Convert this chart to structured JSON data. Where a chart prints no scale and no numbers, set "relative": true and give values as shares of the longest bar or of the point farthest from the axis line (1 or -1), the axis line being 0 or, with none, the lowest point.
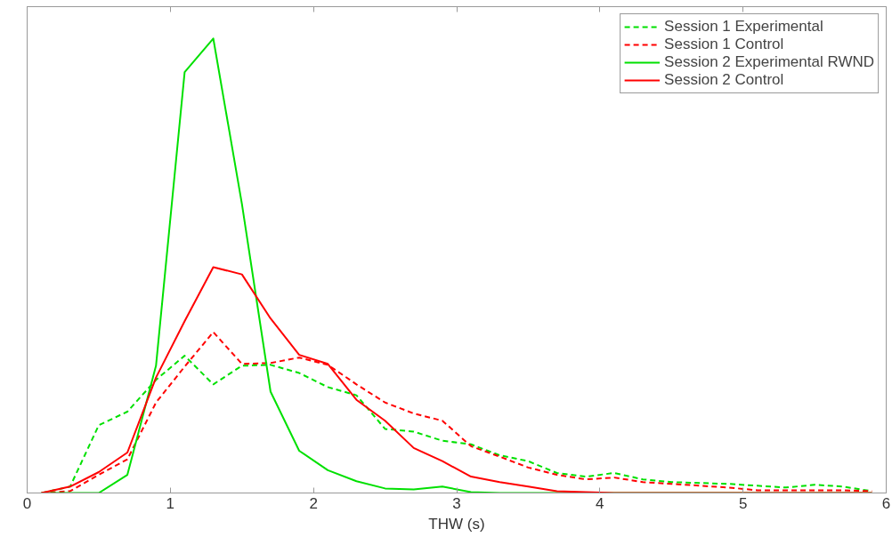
{
  "chart_data": {
    "type": "line",
    "relative": true,
    "xlabel": "THW (s)",
    "xlim": [
      0,
      6
    ],
    "xticks": [
      0,
      1,
      2,
      3,
      4,
      5,
      6
    ],
    "annotations": [
      "0"
    ],
    "grid": false,
    "legend": "top right",
    "tick_labels": "x",
    "x": [
      0.1,
      0.3,
      0.5,
      0.7,
      0.9,
      1.1,
      1.3,
      1.5,
      1.7,
      1.9,
      2.1,
      2.3,
      2.5,
      2.7,
      2.9,
      3.1,
      3.3,
      3.5,
      3.7,
      3.9,
      4.1,
      4.3,
      4.5,
      4.7,
      4.9,
      5.1,
      5.3,
      5.5,
      5.7,
      5.9
    ],
    "series": [
      {
        "name": "Session 1 Experimental",
        "color": "#00e000",
        "line_style": "dashed",
        "values": [
          0,
          0.014,
          0.149,
          0.179,
          0.249,
          0.302,
          0.239,
          0.28,
          0.282,
          0.264,
          0.233,
          0.215,
          0.141,
          0.135,
          0.115,
          0.107,
          0.083,
          0.07,
          0.044,
          0.036,
          0.044,
          0.03,
          0.024,
          0.022,
          0.02,
          0.016,
          0.012,
          0.018,
          0.014,
          0.004
        ]
      },
      {
        "name": "Session 1 Control",
        "color": "#ff0000",
        "line_style": "dashed",
        "values": [
          0,
          0.004,
          0.04,
          0.074,
          0.199,
          0.278,
          0.354,
          0.284,
          0.286,
          0.298,
          0.282,
          0.239,
          0.199,
          0.175,
          0.159,
          0.103,
          0.08,
          0.056,
          0.04,
          0.03,
          0.034,
          0.024,
          0.02,
          0.016,
          0.012,
          0.006,
          0.006,
          0.006,
          0.006,
          0.004
        ]
      },
      {
        "name": "Session 2 Experimental RWND",
        "color": "#00e000",
        "line_style": "solid",
        "values": [
          0,
          0,
          0,
          0.04,
          0.28,
          0.926,
          1,
          0.636,
          0.223,
          0.093,
          0.05,
          0.026,
          0.01,
          0.008,
          0.014,
          0.002,
          0,
          0,
          0,
          0,
          0,
          0,
          0,
          0,
          0,
          0,
          0,
          0,
          0,
          0
        ]
      },
      {
        "name": "Session 2 Control",
        "color": "#ff0000",
        "line_style": "solid",
        "values": [
          0,
          0.014,
          0.046,
          0.089,
          0.254,
          0.378,
          0.497,
          0.481,
          0.384,
          0.304,
          0.284,
          0.205,
          0.159,
          0.099,
          0.07,
          0.036,
          0.024,
          0.014,
          0.004,
          0.002,
          0,
          0,
          0,
          0,
          0,
          0,
          0,
          0,
          0,
          0
        ]
      }
    ]
  }
}
